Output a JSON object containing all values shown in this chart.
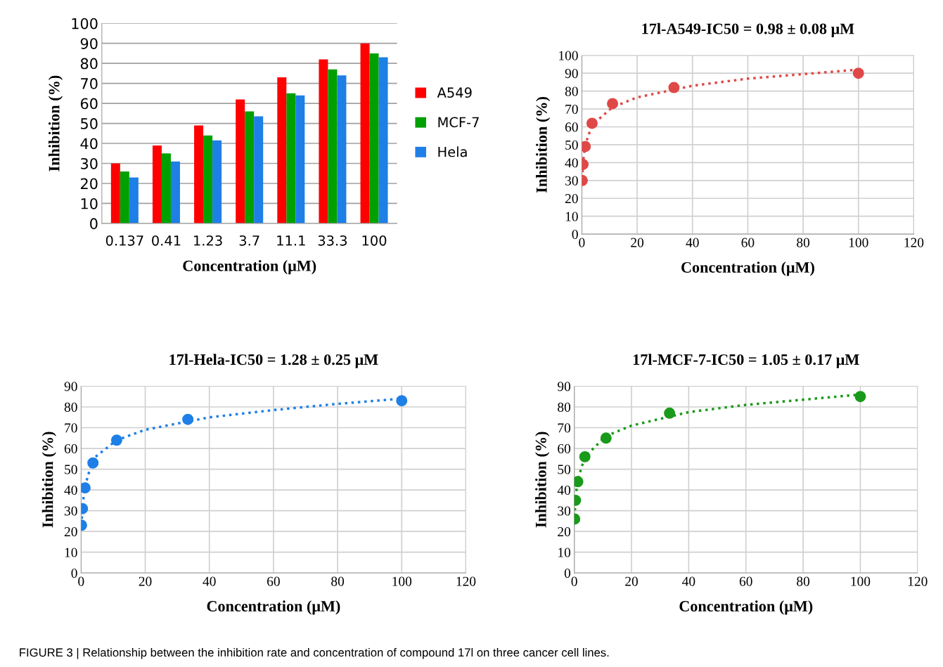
{
  "chart_data": [
    {
      "type": "bar",
      "categories": [
        "0.137",
        "0.41",
        "1.23",
        "3.7",
        "11.1",
        "33.3",
        "100"
      ],
      "xlabel": "Concentration (μM)",
      "ylabel": "Inhibition (%)",
      "ylim": [
        0,
        100
      ],
      "yticks": [
        0,
        10,
        20,
        30,
        40,
        50,
        60,
        70,
        80,
        90,
        100
      ],
      "grid": "y",
      "legend": "right",
      "series": [
        {
          "name": "A549",
          "color": "#ff0000",
          "values": [
            30,
            39,
            49,
            62,
            73,
            82,
            90
          ]
        },
        {
          "name": "MCF-7",
          "color": "#00a000",
          "values": [
            26,
            35,
            44,
            56,
            65,
            77,
            85
          ]
        },
        {
          "name": "Hela",
          "color": "#1e7fe6",
          "values": [
            23,
            31,
            41.5,
            53.5,
            64,
            74,
            83
          ]
        }
      ]
    },
    {
      "type": "scatter",
      "title": "17l-A549-IC50 = 0.98 ± 0.08 μM",
      "xlabel": "Concentration (μM)",
      "ylabel": "Inhibition (%)",
      "xlim": [
        0,
        120
      ],
      "xticks": [
        0,
        20,
        40,
        60,
        80,
        100,
        120
      ],
      "ylim": [
        0,
        100
      ],
      "yticks": [
        0,
        10,
        20,
        30,
        40,
        50,
        60,
        70,
        80,
        90,
        100
      ],
      "grid": true,
      "marker": "circle",
      "series": [
        {
          "color": "#e04848",
          "x": [
            0.137,
            0.41,
            1.23,
            3.7,
            11.1,
            33.3,
            100
          ],
          "values": [
            30,
            39,
            49,
            62,
            73,
            82,
            90
          ]
        },
        {
          "type": "line",
          "line_style": "dotted",
          "marker": "none",
          "color": "#e04848",
          "x": [
            0.137,
            0.41,
            1.23,
            3.7,
            11.1,
            20,
            40,
            60,
            80,
            100
          ],
          "values": [
            31,
            40,
            50,
            61,
            71,
            76.5,
            83,
            87,
            89.5,
            92
          ]
        }
      ]
    },
    {
      "type": "scatter",
      "title": "17l-Hela-IC50 = 1.28 ± 0.25 μM",
      "xlabel": "Concentration (μM)",
      "ylabel": "Inhibition (%)",
      "xlim": [
        0,
        120
      ],
      "xticks": [
        0,
        20,
        40,
        60,
        80,
        100,
        120
      ],
      "ylim": [
        0,
        90
      ],
      "yticks": [
        0,
        10,
        20,
        30,
        40,
        50,
        60,
        70,
        80,
        90
      ],
      "grid": true,
      "marker": "circle",
      "series": [
        {
          "color": "#1e7fe6",
          "x": [
            0.137,
            0.41,
            1.23,
            3.7,
            11.1,
            33.3,
            100
          ],
          "values": [
            23,
            31,
            41,
            53,
            64,
            74,
            83
          ]
        },
        {
          "type": "line",
          "line_style": "dotted",
          "marker": "none",
          "color": "#1e7fe6",
          "x": [
            0.137,
            0.41,
            1.23,
            3.7,
            11.1,
            20,
            40,
            60,
            80,
            100
          ],
          "values": [
            23,
            32,
            42,
            55,
            64,
            69,
            75,
            78.5,
            81.5,
            84
          ]
        }
      ]
    },
    {
      "type": "scatter",
      "title": "17l-MCF-7-IC50 = 1.05 ± 0.17 μM",
      "xlabel": "Concentration (μM)",
      "ylabel": "Inhibition (%)",
      "xlim": [
        0,
        120
      ],
      "xticks": [
        0,
        20,
        40,
        60,
        80,
        100,
        120
      ],
      "ylim": [
        0,
        90
      ],
      "yticks": [
        0,
        10,
        20,
        30,
        40,
        50,
        60,
        70,
        80,
        90
      ],
      "grid": true,
      "marker": "circle",
      "annotations": [
        "FIGURE 3 | Relationship between the inhibition rate and concentration of compound 17l on three cancer cell lines."
      ],
      "series": [
        {
          "color": "#1a9a1a",
          "x": [
            0.137,
            0.41,
            1.23,
            3.7,
            11.1,
            33.3,
            100
          ],
          "values": [
            26,
            35,
            44,
            56,
            65,
            77,
            85
          ]
        },
        {
          "type": "line",
          "line_style": "dotted",
          "marker": "none",
          "color": "#1a9a1a",
          "x": [
            0.137,
            0.41,
            1.23,
            3.7,
            11.1,
            20,
            40,
            60,
            80,
            100
          ],
          "values": [
            27,
            36,
            45,
            56,
            66,
            71,
            77.5,
            81,
            83.5,
            86
          ]
        }
      ]
    }
  ]
}
